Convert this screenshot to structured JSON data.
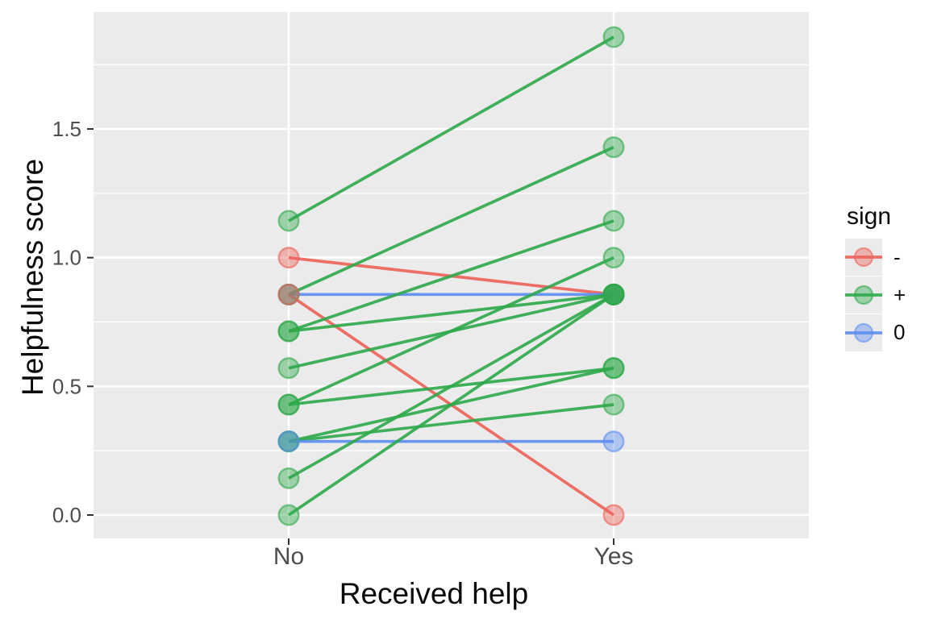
{
  "chart_data": {
    "type": "line",
    "subtype": "paired-slope-chart",
    "title": "",
    "xlabel": "Received help",
    "ylabel": "Helpfulness score",
    "x_categories": [
      "No",
      "Yes"
    ],
    "y_tick_labels": [
      "0.0",
      "0.5",
      "1.0",
      "1.5"
    ],
    "y_tick_values": [
      0.0,
      0.5,
      1.0,
      1.5
    ],
    "y_minor_values": [
      0.25,
      0.75,
      1.25,
      1.75
    ],
    "ylim": [
      -0.09,
      1.95
    ],
    "grid": "on",
    "legend": {
      "title": "sign",
      "position": "right",
      "entries": [
        {
          "label": "-",
          "sign": "-",
          "color": "#EC6157"
        },
        {
          "label": "+",
          "sign": "+",
          "color": "#2EA94A"
        },
        {
          "label": "0",
          "sign": "0",
          "color": "#5B8DF0"
        }
      ]
    },
    "colors": {
      "panel_background": "#EBEBEB",
      "gridline": "#FFFFFF",
      "tick_text": "#4D4D4D",
      "tick_mark": "#333333"
    },
    "pairs": [
      {
        "no": 1.143,
        "yes": 1.857,
        "sign": "+"
      },
      {
        "no": 1.0,
        "yes": 0.857,
        "sign": "-"
      },
      {
        "no": 0.857,
        "yes": 0.857,
        "sign": "0"
      },
      {
        "no": 0.857,
        "yes": 1.429,
        "sign": "+"
      },
      {
        "no": 0.857,
        "yes": 0.0,
        "sign": "-"
      },
      {
        "no": 0.714,
        "yes": 1.143,
        "sign": "+"
      },
      {
        "no": 0.714,
        "yes": 0.857,
        "sign": "+"
      },
      {
        "no": 0.571,
        "yes": 0.857,
        "sign": "+"
      },
      {
        "no": 0.429,
        "yes": 1.0,
        "sign": "+"
      },
      {
        "no": 0.429,
        "yes": 0.571,
        "sign": "+"
      },
      {
        "no": 0.286,
        "yes": 0.571,
        "sign": "+"
      },
      {
        "no": 0.286,
        "yes": 0.429,
        "sign": "+"
      },
      {
        "no": 0.286,
        "yes": 0.286,
        "sign": "0"
      },
      {
        "no": 0.143,
        "yes": 0.857,
        "sign": "+"
      },
      {
        "no": 0.0,
        "yes": 0.857,
        "sign": "+"
      }
    ]
  }
}
